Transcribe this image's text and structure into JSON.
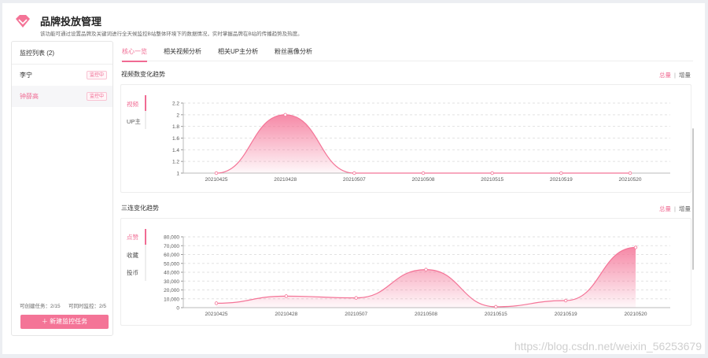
{
  "header": {
    "title": "品牌投放管理",
    "description": "该功能可通过设置品牌及关键词进行全天候监控B站整体环境下的数据情况，实时掌握品牌在B站的传播趋势及热度。"
  },
  "sidebar": {
    "title": "监控列表",
    "count": "(2)",
    "items": [
      {
        "name": "李宁",
        "status": "监控中"
      },
      {
        "name": "钟薛高",
        "status": "监控中"
      }
    ],
    "quota_created": "可创建任务：2/15",
    "quota_sync": "可同时监控：2/5",
    "new_task_label": "新建监控任务"
  },
  "tabs": [
    "核心一览",
    "相关视频分析",
    "相关UP主分析",
    "粉丝画像分析"
  ],
  "section1": {
    "title": "视频数变化趋势",
    "toggle_on": "总量",
    "toggle_off": "增量",
    "sep": "|",
    "metrics": [
      "视频",
      "UP主"
    ]
  },
  "section2": {
    "title": "三连变化趋势",
    "toggle_on": "总量",
    "toggle_off": "增量",
    "sep": "|",
    "metrics": [
      "点赞",
      "收藏",
      "投币"
    ]
  },
  "watermark": "https://blog.csdn.net/weixin_56253679",
  "colors": {
    "accent": "#f06b93"
  },
  "chart_data": [
    {
      "type": "area",
      "categories": [
        "20210425",
        "20210428",
        "20210507",
        "20210508",
        "20210515",
        "20210519",
        "20210520"
      ],
      "series": [
        {
          "values": [
            1,
            2,
            1,
            1,
            1,
            1,
            1
          ]
        }
      ],
      "ylim": [
        1,
        2.2
      ],
      "yticks": [
        "1",
        "1.2",
        "1.4",
        "1.6",
        "1.8",
        "2",
        "2.2"
      ],
      "grid": true
    },
    {
      "type": "area",
      "categories": [
        "20210425",
        "20210428",
        "20210507",
        "20210508",
        "20210515",
        "20210519",
        "20210520"
      ],
      "series": [
        {
          "values": [
            5000,
            13000,
            11000,
            43000,
            1000,
            8000,
            68000
          ]
        }
      ],
      "ylim": [
        0,
        80000
      ],
      "yticks": [
        "0",
        "10,000",
        "20,000",
        "30,000",
        "40,000",
        "50,000",
        "60,000",
        "70,000",
        "80,000"
      ],
      "grid": true
    }
  ]
}
